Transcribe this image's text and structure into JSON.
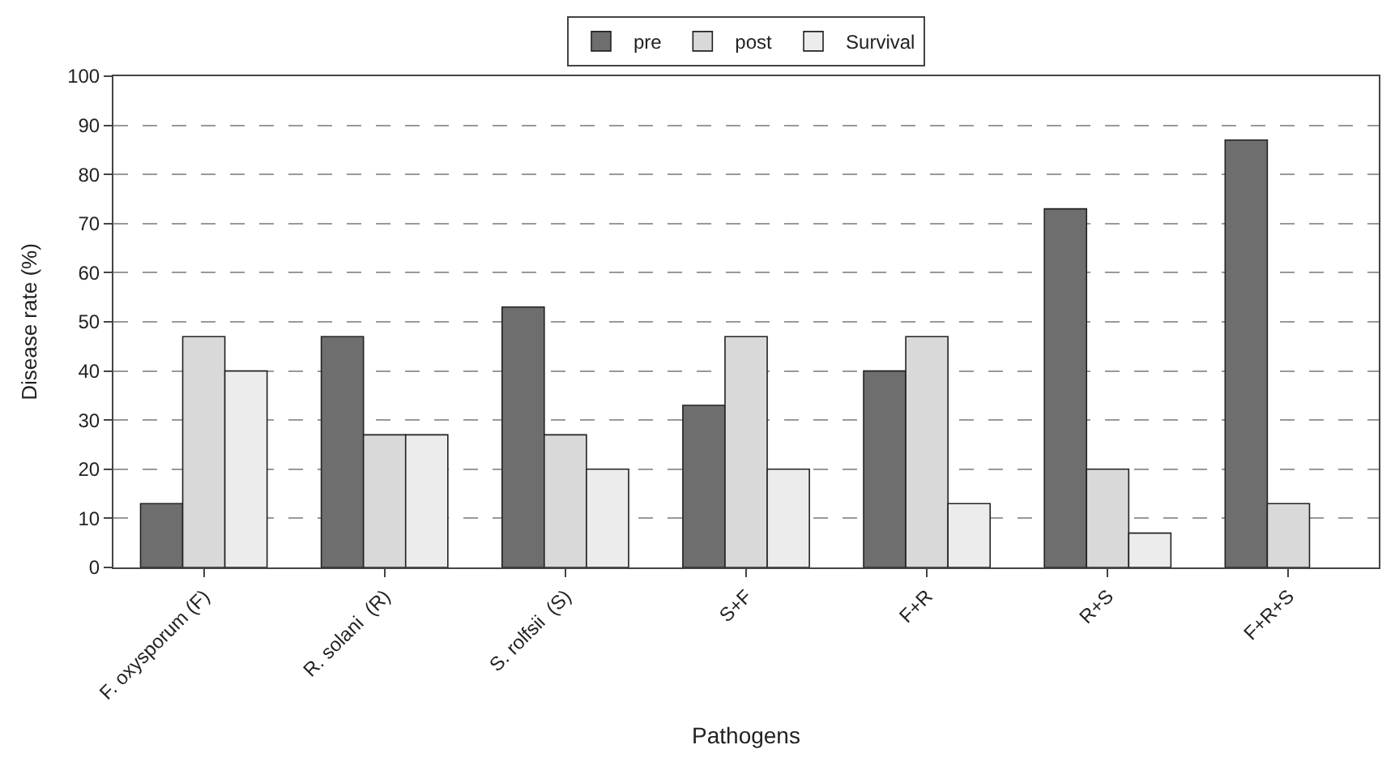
{
  "chart_data": {
    "type": "bar",
    "xlabel": "Pathogens",
    "ylabel": "Disease rate (%)",
    "categories": [
      "F. oxysporum (F)",
      "R. solani  (R)",
      "S. rolfsii  (S)",
      "S+F",
      "F+R",
      "R+S",
      "F+R+S"
    ],
    "series": [
      {
        "name": "pre",
        "color": "#6e6e6e",
        "values": [
          13,
          47,
          53,
          33,
          40,
          73,
          87
        ]
      },
      {
        "name": "post",
        "color": "#d9d9d9",
        "values": [
          47,
          27,
          27,
          47,
          47,
          20,
          13
        ]
      },
      {
        "name": "Survival",
        "color": "#ececec",
        "values": [
          40,
          27,
          20,
          20,
          13,
          7,
          null
        ]
      }
    ],
    "ylim": [
      0,
      100
    ],
    "yticks": [
      0,
      10,
      20,
      30,
      40,
      50,
      60,
      70,
      80,
      90,
      100
    ],
    "grid": "y",
    "legend": "top"
  }
}
